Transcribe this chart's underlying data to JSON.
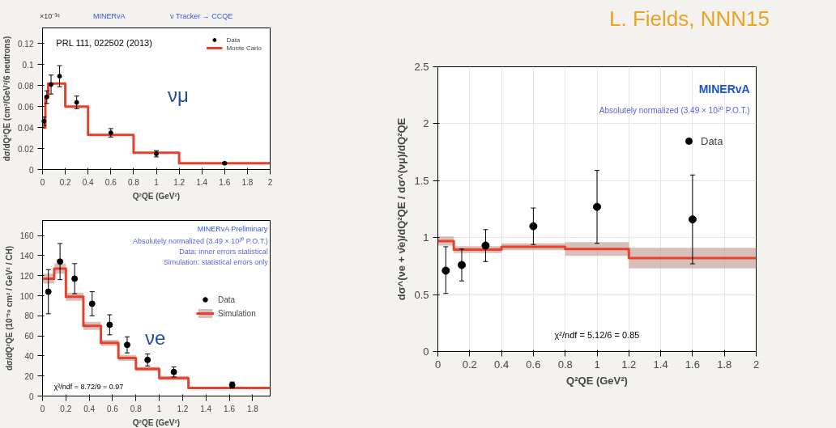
{
  "chart_data": [
    {
      "type": "step",
      "xlabel": "Q²QE (GeV²)",
      "ylabel": "dσ/dQ²QE (cm²/GeV²/6 neutrons)",
      "xlim": [
        0,
        2
      ],
      "ylim": [
        0,
        0.135
      ],
      "xticks": [
        0,
        0.2,
        0.4,
        0.6,
        0.8,
        1,
        1.2,
        1.4,
        1.6,
        1.8,
        2
      ],
      "yticks": [
        0,
        0.02,
        0.04,
        0.06,
        0.08,
        0.1,
        0.12
      ],
      "legend": "top right",
      "grid": false,
      "series": [
        {
          "name": "Data",
          "type": "scatter",
          "marker": "circle",
          "color": "#000000",
          "x": [
            0.0125,
            0.0375,
            0.075,
            0.15,
            0.3,
            0.6,
            1.0,
            1.6
          ],
          "values": [
            0.046,
            0.069,
            0.081,
            0.089,
            0.064,
            0.035,
            0.015,
            0.006
          ],
          "errors": [
            0.004,
            0.006,
            0.009,
            0.01,
            0.006,
            0.004,
            0.003,
            0.001
          ]
        },
        {
          "name": "Monte Carlo",
          "color": "#e8402a",
          "x": [
            0,
            0.025,
            0.05,
            0.1,
            0.2,
            0.4,
            0.8,
            1.2,
            2.0
          ],
          "values": [
            0.04,
            0.07,
            0.082,
            0.082,
            0.06,
            0.033,
            0.016,
            0.006,
            0.006
          ]
        }
      ],
      "annotations": [
        "×10⁻³⁶",
        "MINERvA",
        "ν Tracker → CCQE",
        "PRL 111, 022502 (2013)",
        "νμ"
      ]
    },
    {
      "type": "step",
      "xlabel": "Q²QE (GeV²)",
      "ylabel": "dσ/dQ²QE (10⁻³⁹ cm² / GeV² / CH)",
      "xlim": [
        0,
        1.95
      ],
      "ylim": [
        0,
        175
      ],
      "xticks": [
        0,
        0.2,
        0.4,
        0.6,
        0.8,
        1,
        1.2,
        1.4,
        1.6,
        1.8
      ],
      "yticks": [
        0,
        20,
        40,
        60,
        80,
        100,
        120,
        140,
        160
      ],
      "legend": "right",
      "grid": false,
      "series": [
        {
          "name": "Data",
          "type": "scatter",
          "marker": "circle",
          "color": "#000000",
          "x": [
            0.05,
            0.15,
            0.275,
            0.425,
            0.575,
            0.725,
            0.9,
            1.125,
            1.625
          ],
          "values": [
            104,
            134,
            117,
            92,
            71,
            51,
            36,
            24,
            11
          ],
          "errors": [
            22,
            18,
            15,
            12,
            10,
            8,
            6,
            5,
            3
          ]
        },
        {
          "name": "Simulation",
          "color": "#e8402a",
          "x": [
            0,
            0.1,
            0.2,
            0.35,
            0.5,
            0.65,
            0.8,
            1.0,
            1.25,
            1.95
          ],
          "values": [
            117,
            127,
            99,
            70,
            53,
            38,
            27,
            18,
            8,
            8
          ],
          "lower": [
            112,
            122,
            95,
            66,
            50,
            35,
            25,
            16,
            7,
            7
          ],
          "upper": [
            122,
            132,
            103,
            74,
            56,
            41,
            29,
            20,
            9,
            9
          ]
        }
      ],
      "annotations": [
        "MINERvA Preliminary",
        "Absolutely normalized (3.49 × 10²⁰ P.O.T.)",
        "Data: inner errors statistical",
        "Simulation: statistical errors only",
        "χ²/ndf = 8.72/9 = 0.97",
        "νe"
      ]
    },
    {
      "type": "step",
      "xlabel": "Q²QE (GeV²)",
      "ylabel": "dσ^(νe + ν̄e)/dQ²QE / dσ^(νμ)/dQ²QE",
      "xlim": [
        0,
        2
      ],
      "ylim": [
        0,
        2.5
      ],
      "xticks": [
        0,
        0.2,
        0.4,
        0.6,
        0.8,
        1,
        1.2,
        1.4,
        1.6,
        1.8,
        2
      ],
      "yticks": [
        0,
        0.5,
        1,
        1.5,
        2,
        2.5
      ],
      "legend": "top right",
      "grid": true,
      "series": [
        {
          "name": "Data",
          "type": "scatter",
          "marker": "circle",
          "color": "#000000",
          "x": [
            0.05,
            0.15,
            0.3,
            0.6,
            1.0,
            1.6
          ],
          "values": [
            0.71,
            0.76,
            0.93,
            1.1,
            1.27,
            1.16
          ],
          "errors": [
            [
              0.51,
              0.92
            ],
            [
              0.62,
              0.9
            ],
            [
              0.79,
              1.07
            ],
            [
              0.94,
              1.26
            ],
            [
              0.95,
              1.59
            ],
            [
              0.77,
              1.55
            ]
          ]
        },
        {
          "color": "#e8402a",
          "x": [
            0,
            0.1,
            0.4,
            0.8,
            1.2,
            2.0
          ],
          "values": [
            0.97,
            0.895,
            0.92,
            0.9,
            0.82,
            0.82
          ],
          "lower": [
            0.93,
            0.865,
            0.89,
            0.84,
            0.73,
            0.73
          ],
          "upper": [
            1.01,
            0.925,
            0.95,
            0.96,
            0.91,
            0.91
          ]
        }
      ],
      "annotations": [
        "L. Fields, NNN15",
        "MINERvA",
        "Absolutely normalized (3.49 × 10²⁰ P.O.T.)",
        "χ²/ndf = 5.12/6 = 0.85"
      ]
    }
  ]
}
